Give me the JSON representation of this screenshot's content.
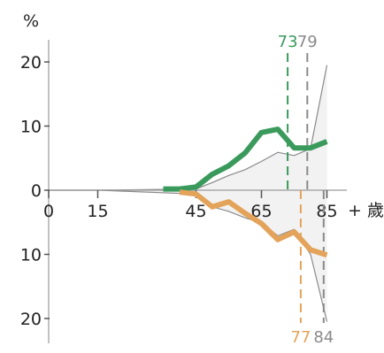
{
  "chart_data": {
    "type": "line",
    "title": "",
    "ylabel": "%",
    "xlabel": "歲",
    "x_unit_suffix": "+ 歲",
    "x_ticks": [
      0,
      15,
      45,
      65,
      85
    ],
    "x_tick_labels": [
      "0",
      "15",
      "45",
      "65",
      "85"
    ],
    "y_ticks_upper": [
      0,
      10,
      20
    ],
    "y_ticks_lower": [
      10,
      20
    ],
    "y_tick_labels_upper": [
      "0",
      "10",
      "20"
    ],
    "y_tick_labels_lower": [
      "10",
      "20"
    ],
    "xlim": [
      0,
      88
    ],
    "ylim_upper": [
      0,
      20
    ],
    "ylim_lower": [
      0,
      20
    ],
    "series": [
      {
        "name": "",
        "side": "upper",
        "color": "#3a9a5c",
        "x": [
          35,
          40,
          45,
          50,
          55,
          60,
          65,
          70,
          75,
          80,
          85
        ],
        "values": [
          0.2,
          0.2,
          0.5,
          2.5,
          3.8,
          5.8,
          9.0,
          9.5,
          6.6,
          6.6,
          7.6
        ]
      },
      {
        "name": "",
        "side": "lower",
        "color": "#e3a35a",
        "x": [
          40,
          45,
          50,
          55,
          60,
          65,
          70,
          75,
          80,
          85
        ],
        "values": [
          0.3,
          0.6,
          2.6,
          1.8,
          3.6,
          5.2,
          7.7,
          6.5,
          9.3,
          10.1
        ]
      }
    ],
    "reference_upper": {
      "color": "#8a8a8a",
      "x": [
        0,
        15,
        45,
        50,
        55,
        60,
        65,
        70,
        75,
        80,
        85
      ],
      "values": [
        0,
        0,
        0.2,
        1.2,
        2.3,
        3.2,
        4.5,
        5.9,
        5.4,
        6.5,
        19.5
      ]
    },
    "reference_lower": {
      "color": "#8a8a8a",
      "x": [
        0,
        15,
        45,
        50,
        55,
        60,
        65,
        70,
        75,
        80,
        85
      ],
      "values": [
        0,
        0,
        0.6,
        2.6,
        3.3,
        4.3,
        5.1,
        7.1,
        6.1,
        10.0,
        20.5
      ]
    },
    "markers": [
      {
        "label": "73",
        "value": 73,
        "side": "upper",
        "color": "#3a9a5c"
      },
      {
        "label": "79",
        "value": 79,
        "side": "upper",
        "color": "#8a8a8a"
      },
      {
        "label": "77",
        "value": 77,
        "side": "lower",
        "color": "#e3a35a"
      },
      {
        "label": "84",
        "value": 84,
        "side": "lower",
        "color": "#8a8a8a"
      }
    ],
    "grid": false,
    "legend": "none"
  }
}
